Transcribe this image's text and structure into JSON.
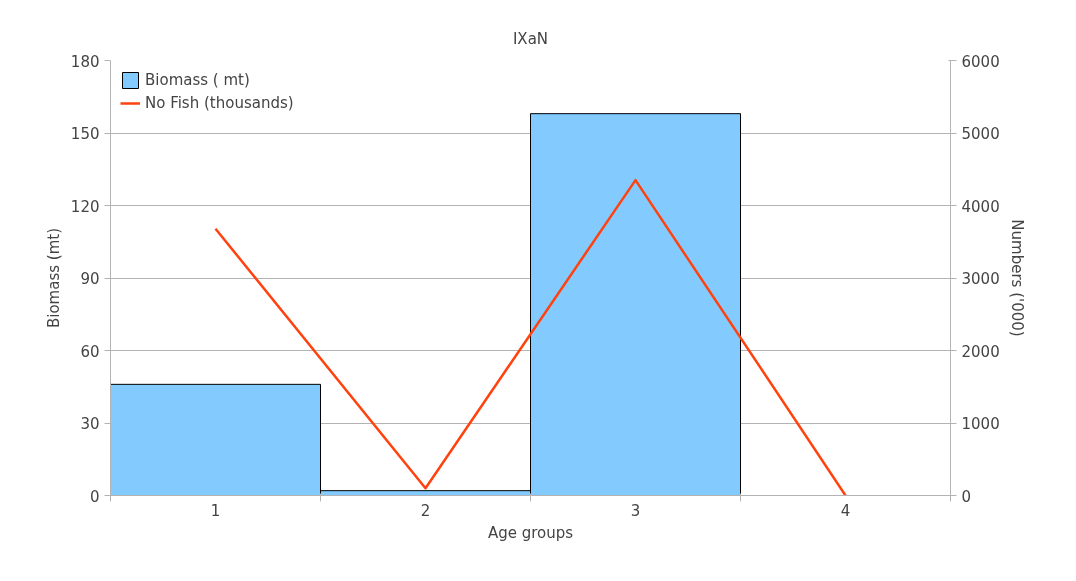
{
  "chart_data": {
    "type": "bar",
    "title": "IXaN",
    "xlabel": "Age groups",
    "ylabel": "Biomass (mt)",
    "y2label": "Numbers ('000)",
    "categories": [
      "1",
      "2",
      "3",
      "4"
    ],
    "series": [
      {
        "name": "Biomass ( mt)",
        "color": "#83caff",
        "values": [
          46,
          2,
          158,
          null
        ]
      },
      {
        "name": "No Fish (thousands)",
        "type": "line",
        "axis": "y2",
        "color": "#ff420e",
        "values": [
          3680,
          100,
          4350,
          0
        ]
      }
    ],
    "ylim": [
      0,
      180
    ],
    "yticks": [
      0,
      30,
      60,
      90,
      120,
      150,
      180
    ],
    "y2lim": [
      0,
      6000
    ],
    "y2ticks": [
      0,
      1000,
      2000,
      3000,
      4000,
      5000,
      6000
    ],
    "grid": "y",
    "legend": "top left",
    "marker": "none",
    "line_style": "solid"
  }
}
